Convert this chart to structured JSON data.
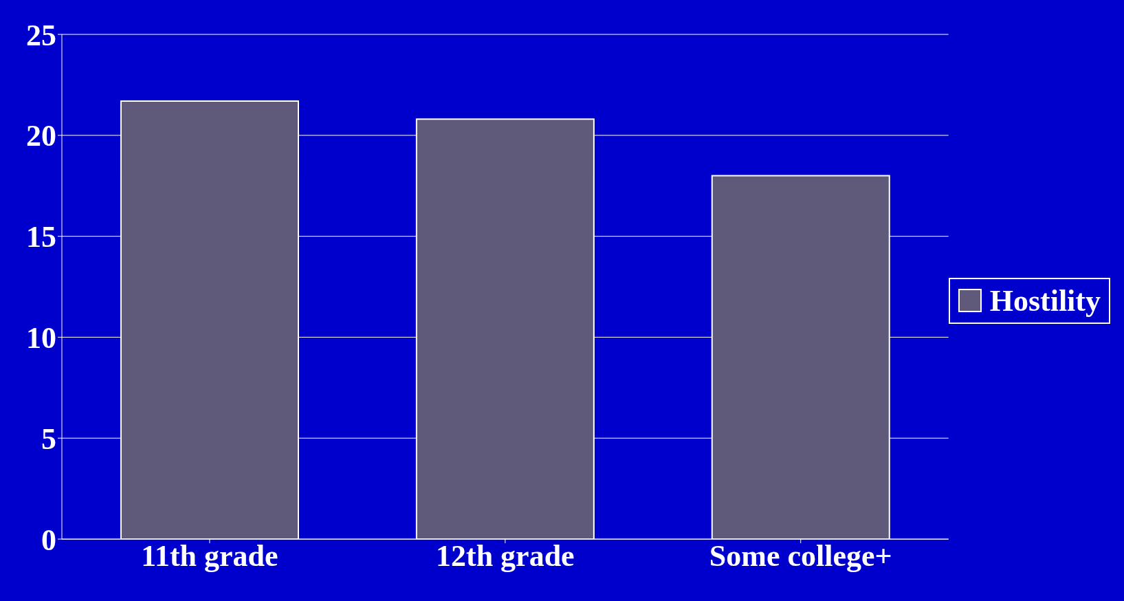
{
  "chart_data": {
    "type": "bar",
    "categories": [
      "11th grade",
      "12th grade",
      "Some college+"
    ],
    "series": [
      {
        "name": "Hostility",
        "color": "#605a7a",
        "values": [
          21.7,
          20.8,
          18.0
        ]
      }
    ],
    "ylim": [
      0,
      25
    ],
    "yticks": [
      0,
      5,
      10,
      15,
      20,
      25
    ],
    "grid": "y",
    "legend": "right"
  }
}
